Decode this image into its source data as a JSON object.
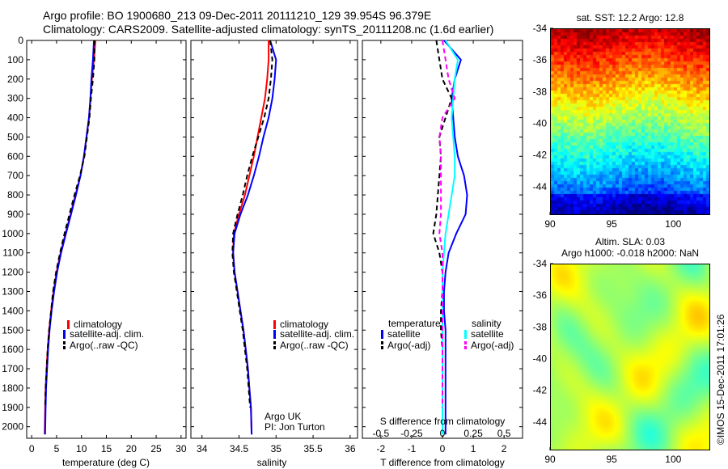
{
  "header": {
    "line1": "Argo profile: BO 1900680_213 09-Dec-2011 20111210_129 39.954S 96.379E",
    "line2": "Climatology: CARS2009. Satellite-adjusted climatology: synTS_20111208.nc (1.6d earlier)"
  },
  "credit": {
    "line1": "Argo UK",
    "line2": "PI: Jon Turton"
  },
  "watermark": "©IMOS 15-Dec-2011 17:01:26",
  "colors": {
    "red": "#ff0000",
    "blue": "#0000ff",
    "black": "#000000",
    "cyan": "#00ffff",
    "magenta": "#ff00ff"
  },
  "maps": {
    "sst": {
      "title": "sat. SST: 12.2 Argo: 12.8",
      "x_ticks": [
        "90",
        "95",
        "100"
      ],
      "y_ticks": [
        "-34",
        "-36",
        "-38",
        "-40",
        "-42",
        "-44"
      ],
      "xlim": [
        90,
        103
      ],
      "ylim": [
        -45.8,
        -34
      ],
      "marker": {
        "lon": 96.379,
        "lat": -39.954
      }
    },
    "sla": {
      "title_line1": "Altim. SLA: 0.03",
      "title_line2": "Argo h1000: -0.018 h2000: NaN",
      "x_ticks": [
        "90",
        "95",
        "100"
      ],
      "y_ticks": [
        "-34",
        "-36",
        "-38",
        "-40",
        "-42",
        "-44"
      ],
      "xlim": [
        90,
        103
      ],
      "ylim": [
        -45.8,
        -34
      ],
      "marker": {
        "lon": 96.379,
        "lat": -39.954
      }
    }
  },
  "chart_data": [
    {
      "type": "line",
      "xlabel": "temperature (deg C)",
      "ylabel": "",
      "xlim": [
        -1,
        31
      ],
      "ylim": [
        2060,
        0
      ],
      "x_ticks": [
        "0",
        "5",
        "10",
        "15",
        "20",
        "25",
        "30"
      ],
      "x_tick_values": [
        0,
        5,
        10,
        15,
        20,
        25,
        30
      ],
      "y_ticks": [
        "0",
        "100",
        "200",
        "300",
        "400",
        "500",
        "600",
        "700",
        "800",
        "900",
        "1000",
        "1100",
        "1200",
        "1300",
        "1400",
        "1500",
        "1600",
        "1700",
        "1800",
        "1900",
        "2000"
      ],
      "y_tick_values": [
        0,
        100,
        200,
        300,
        400,
        500,
        600,
        700,
        800,
        900,
        1000,
        1100,
        1200,
        1300,
        1400,
        1500,
        1600,
        1700,
        1800,
        1900,
        2000
      ],
      "legend": [
        "climatology",
        "satellite-adj. clim.",
        "Argo(..raw -QC)"
      ],
      "legend_placement": "lower-middle",
      "series": [
        {
          "name": "climatology",
          "color": "red",
          "dash": "solid",
          "x": [
            12.8,
            12.5,
            12.1,
            11.8,
            11.5,
            11.0,
            10.5,
            9.8,
            8.8,
            7.8,
            6.8,
            5.8,
            5.0,
            4.4,
            3.9,
            3.5,
            3.2,
            3.0,
            2.8,
            2.7,
            2.6
          ],
          "y": [
            0,
            100,
            200,
            300,
            400,
            500,
            600,
            700,
            800,
            900,
            1000,
            1100,
            1200,
            1300,
            1400,
            1500,
            1600,
            1700,
            1800,
            1900,
            2040
          ]
        },
        {
          "name": "satellite-adj. clim.",
          "color": "blue",
          "dash": "solid",
          "x": [
            12.5,
            12.3,
            12.0,
            11.8,
            11.5,
            11.0,
            10.5,
            9.8,
            8.9,
            7.9,
            6.9,
            5.9,
            5.1,
            4.5,
            4.0,
            3.6,
            3.3,
            3.1,
            2.9,
            2.8,
            2.7
          ],
          "y": [
            0,
            100,
            200,
            300,
            400,
            500,
            600,
            700,
            800,
            900,
            1000,
            1100,
            1200,
            1300,
            1400,
            1500,
            1600,
            1700,
            1800,
            1900,
            2040
          ]
        },
        {
          "name": "Argo(..raw -QC)",
          "color": "black",
          "dash": "dash",
          "x": [
            12.6,
            12.6,
            12.3,
            11.9,
            11.6,
            11.1,
            10.6,
            9.7,
            8.6,
            7.6,
            6.6,
            5.7,
            4.9,
            4.3,
            3.9,
            3.5,
            3.2,
            3.0,
            2.8,
            2.7
          ],
          "y": [
            0,
            100,
            200,
            300,
            400,
            500,
            600,
            700,
            800,
            900,
            1000,
            1100,
            1200,
            1300,
            1400,
            1500,
            1600,
            1700,
            1800,
            1900
          ]
        }
      ]
    },
    {
      "type": "line",
      "xlabel": "salinity",
      "ylabel": "",
      "xlim": [
        33.85,
        36.1
      ],
      "ylim": [
        2060,
        0
      ],
      "x_ticks": [
        "34",
        "34.5",
        "35",
        "35.5",
        "36"
      ],
      "x_tick_values": [
        34,
        34.5,
        35,
        35.5,
        36
      ],
      "legend": [
        "climatology",
        "satellite-adj. clim.",
        "Argo(..raw -QC)"
      ],
      "legend_placement": "lower-right",
      "series": [
        {
          "name": "climatology",
          "color": "red",
          "dash": "solid",
          "x": [
            34.9,
            34.9,
            34.88,
            34.85,
            34.8,
            34.75,
            34.7,
            34.64,
            34.58,
            34.5,
            34.43,
            34.42,
            34.44,
            34.48,
            34.52,
            34.56,
            34.59,
            34.62,
            34.64,
            34.66,
            34.67
          ],
          "y": [
            0,
            100,
            200,
            300,
            400,
            500,
            600,
            700,
            800,
            900,
            1000,
            1100,
            1200,
            1300,
            1400,
            1500,
            1600,
            1700,
            1800,
            1900,
            2040
          ]
        },
        {
          "name": "satellite-adj. clim.",
          "color": "blue",
          "dash": "solid",
          "x": [
            34.92,
            35.0,
            34.98,
            34.95,
            34.9,
            34.83,
            34.77,
            34.7,
            34.62,
            34.52,
            34.44,
            34.42,
            34.44,
            34.48,
            34.52,
            34.56,
            34.59,
            34.62,
            34.64,
            34.66,
            34.67
          ],
          "y": [
            0,
            100,
            200,
            300,
            400,
            500,
            600,
            700,
            800,
            900,
            1000,
            1100,
            1200,
            1300,
            1400,
            1500,
            1600,
            1700,
            1800,
            1900,
            2040
          ]
        },
        {
          "name": "Argo(..raw -QC)",
          "color": "black",
          "dash": "dash",
          "x": [
            34.92,
            34.95,
            34.93,
            34.9,
            34.84,
            34.76,
            34.68,
            34.61,
            34.55,
            34.48,
            34.42,
            34.41,
            34.43,
            34.47,
            34.51,
            34.55,
            34.58,
            34.61,
            34.63,
            34.65
          ],
          "y": [
            0,
            100,
            200,
            300,
            400,
            500,
            600,
            700,
            800,
            900,
            1000,
            1100,
            1200,
            1300,
            1400,
            1500,
            1600,
            1700,
            1800,
            1900
          ]
        }
      ]
    },
    {
      "type": "line",
      "xlabel": "T difference from climatology",
      "top_xlabel": "S difference from climatology",
      "ylabel": "",
      "xlim": [
        -2.6,
        2.6
      ],
      "ylim": [
        2060,
        0
      ],
      "x_ticks": [
        "-2",
        "-1",
        "0",
        "1",
        "2"
      ],
      "x_tick_values": [
        -2,
        -1,
        0,
        1,
        2
      ],
      "s_ticks": [
        "-0.5",
        "-0.25",
        "0",
        "0.25",
        "0.5"
      ],
      "legend_groups": [
        "temperature",
        "salinity"
      ],
      "legend": [
        "satellite",
        "Argo(-adj)",
        "satellite",
        "Argo(-adj)"
      ],
      "legend_placement": "lower-middle",
      "series": [
        {
          "name": "satellite",
          "group": "temperature",
          "color": "blue",
          "dash": "solid",
          "x": [
            0.05,
            0.6,
            0.4,
            0.3,
            0.35,
            0.4,
            0.5,
            0.7,
            0.8,
            0.75,
            0.45,
            0.2,
            0.1,
            0.05,
            0.05,
            0.1,
            0.1,
            0.1,
            0.1,
            0.1,
            0.1
          ],
          "y": [
            0,
            100,
            200,
            300,
            400,
            500,
            600,
            700,
            800,
            900,
            1000,
            1100,
            1200,
            1300,
            1400,
            1500,
            1600,
            1700,
            1800,
            1900,
            2040
          ]
        },
        {
          "name": "Argo(-adj)",
          "group": "temperature",
          "color": "black",
          "dash": "dash",
          "x": [
            -0.2,
            -0.1,
            0.0,
            0.3,
            0.1,
            -0.1,
            -0.05,
            -0.1,
            -0.15,
            -0.2,
            -0.3,
            -0.1,
            0.0,
            0.0,
            -0.05,
            -0.05,
            0.0,
            0.0,
            0.0,
            0.0
          ],
          "y": [
            0,
            100,
            200,
            300,
            400,
            500,
            600,
            700,
            800,
            900,
            1000,
            1100,
            1200,
            1300,
            1400,
            1500,
            1600,
            1700,
            1800,
            1900
          ]
        },
        {
          "name": "satellite",
          "group": "salinity",
          "color": "cyan",
          "dash": "solid",
          "x": [
            0.1,
            0.5,
            0.4,
            0.35,
            0.3,
            0.35,
            0.4,
            0.4,
            0.3,
            0.2,
            0.1,
            0.05,
            0.0,
            0.0,
            0.0,
            0.0,
            0.0,
            0.0,
            0.0,
            0.0,
            0.0
          ],
          "y": [
            0,
            100,
            200,
            300,
            400,
            500,
            600,
            700,
            800,
            900,
            1000,
            1100,
            1200,
            1300,
            1400,
            1500,
            1600,
            1700,
            1800,
            1900,
            2040
          ]
        },
        {
          "name": "Argo(-adj)",
          "group": "salinity",
          "color": "magenta",
          "dash": "dash",
          "x": [
            0.0,
            0.1,
            0.2,
            0.4,
            0.0,
            -0.1,
            -0.05,
            -0.05,
            -0.05,
            -0.05,
            -0.1,
            0.0,
            0.0,
            0.0,
            0.0,
            0.0,
            0.0,
            0.0,
            0.0,
            0.0
          ],
          "y": [
            0,
            100,
            200,
            300,
            400,
            500,
            600,
            700,
            800,
            900,
            1000,
            1100,
            1200,
            1300,
            1400,
            1500,
            1600,
            1700,
            1800,
            1900
          ]
        }
      ]
    }
  ]
}
